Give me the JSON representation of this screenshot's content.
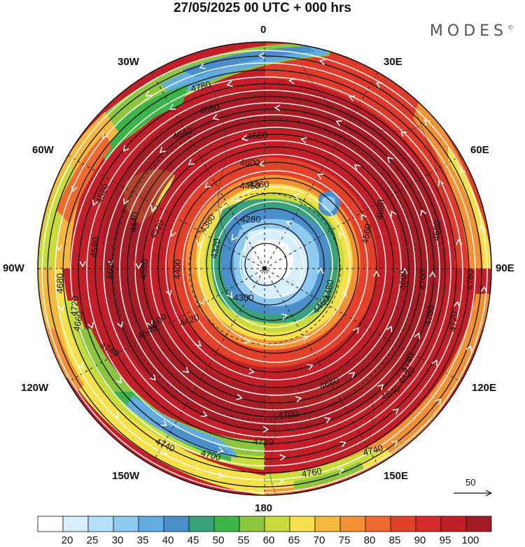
{
  "header": {
    "title": "27/05/2025  00 UTC  + 000 hrs",
    "brand": "MODES",
    "brand_mark": "©"
  },
  "map": {
    "projection": "north polar stereographic",
    "longitude_labels": {
      "lon_0": "0",
      "lon_30e": "30E",
      "lon_60e": "60E",
      "lon_90e": "90E",
      "lon_120e": "120E",
      "lon_150e": "150E",
      "lon_180": "180",
      "lon_150w": "150W",
      "lon_120w": "120W",
      "lon_90w": "90W",
      "lon_60w": "60W",
      "lon_30w": "30W"
    },
    "contour_labels": [
      "4780",
      "4680",
      "4640",
      "4660",
      "4600",
      "4460",
      "4360",
      "4380",
      "4280",
      "4520",
      "4440",
      "4560",
      "4320",
      "4400",
      "4300",
      "4420",
      "4460",
      "4480",
      "4560",
      "4580",
      "4680",
      "4600",
      "4700",
      "4780",
      "4720",
      "4760",
      "4740",
      "4620",
      "4660",
      "4640",
      "4700",
      "4720",
      "4740",
      "4760",
      "4740",
      "4700",
      "4740",
      "4720",
      "4680",
      "4660",
      "4600",
      "4580",
      "4520",
      "4500",
      "4540"
    ],
    "wind_reference": {
      "value": "50"
    }
  },
  "colorbar": {
    "colors": [
      "#ffffff",
      "#d6efff",
      "#b4e0fa",
      "#8ecaf0",
      "#62acdf",
      "#4a8fcb",
      "#3aa27a",
      "#3bb54a",
      "#8cc63f",
      "#c8dc3c",
      "#f6e04b",
      "#f5b93f",
      "#f29135",
      "#ee6a2f",
      "#e3412a",
      "#d6292a",
      "#c21f28",
      "#a11b24"
    ],
    "labels": [
      "20",
      "25",
      "30",
      "35",
      "40",
      "45",
      "50",
      "55",
      "60",
      "65",
      "70",
      "75",
      "80",
      "85",
      "90",
      "95",
      "100"
    ]
  }
}
